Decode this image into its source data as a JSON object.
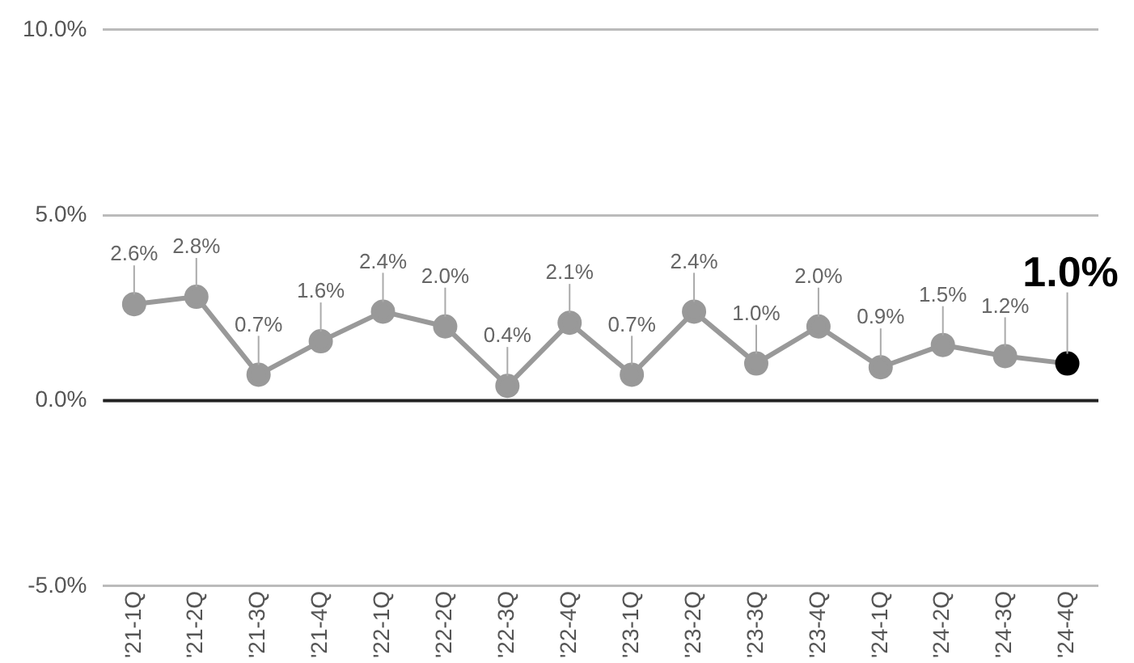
{
  "chart_data": {
    "type": "line",
    "categories": [
      "'21-1Q",
      "'21-2Q",
      "'21-3Q",
      "'21-4Q",
      "'22-1Q",
      "'22-2Q",
      "'22-3Q",
      "'22-4Q",
      "'23-1Q",
      "'23-2Q",
      "'23-3Q",
      "'23-4Q",
      "'24-1Q",
      "'24-2Q",
      "'24-3Q",
      "'24-4Q"
    ],
    "series": [
      {
        "color": "#999999",
        "colors": [
          "#999999",
          "#999999",
          "#999999",
          "#999999",
          "#999999",
          "#999999",
          "#999999",
          "#999999",
          "#999999",
          "#999999",
          "#999999",
          "#999999",
          "#999999",
          "#999999",
          "#999999",
          "#000000"
        ],
        "values": [
          2.6,
          2.8,
          0.7,
          1.6,
          2.4,
          2.0,
          0.4,
          2.1,
          0.7,
          2.4,
          1.0,
          2.0,
          0.9,
          1.5,
          1.2,
          1.0
        ],
        "value_labels": [
          "2.6%",
          "2.8%",
          "0.7%",
          "1.6%",
          "2.4%",
          "2.0%",
          "0.4%",
          "2.1%",
          "0.7%",
          "2.4%",
          "1.0%",
          "2.0%",
          "0.9%",
          "1.5%",
          "1.2%",
          "1.0%"
        ]
      }
    ],
    "ylim": [
      -5,
      10
    ],
    "yticks": [
      {
        "value": -5,
        "label": "-5.0%"
      },
      {
        "value": 0,
        "label": "0.0%"
      },
      {
        "value": 5,
        "label": "5.0%"
      },
      {
        "value": 10,
        "label": "10.0%"
      }
    ],
    "grid": "y",
    "legend": false,
    "marker": "circle",
    "line_style": "solid",
    "ref_lines": [
      {
        "axis": "y",
        "value": 0,
        "color": "#222222"
      }
    ]
  }
}
